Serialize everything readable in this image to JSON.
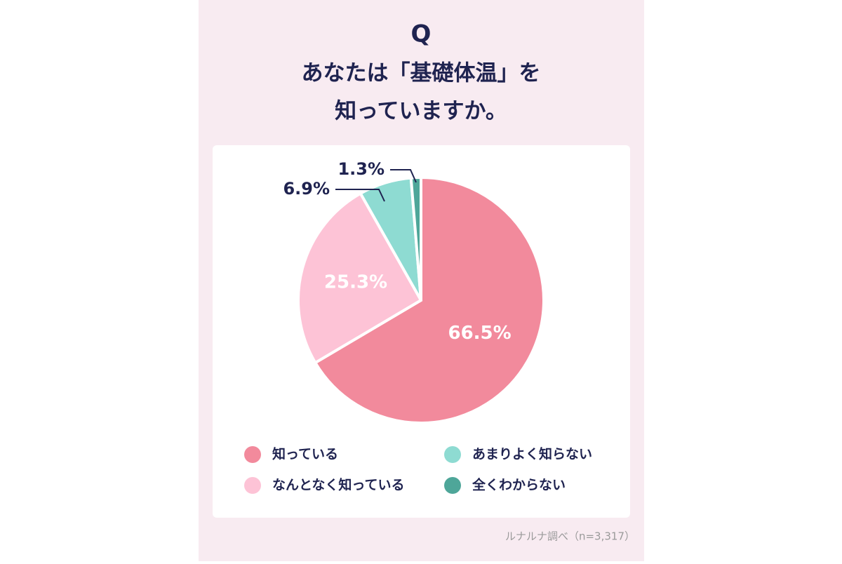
{
  "chart_data": {
    "type": "pie",
    "question_mark": "Q",
    "title_lines": [
      "あなたは「基礎体温」を",
      "知っていますか。"
    ],
    "categories": [
      "知っている",
      "なんとなく知っている",
      "あまりよく知らない",
      "全くわからない"
    ],
    "values": [
      66.5,
      25.3,
      6.9,
      1.3
    ],
    "value_labels": [
      "66.5%",
      "25.3%",
      "6.9%",
      "1.3%"
    ],
    "colors": [
      "#f28a9c",
      "#fdc3d6",
      "#8edbd2",
      "#4ea699"
    ],
    "source": "ルナルナ調べ（n=3,317）"
  }
}
